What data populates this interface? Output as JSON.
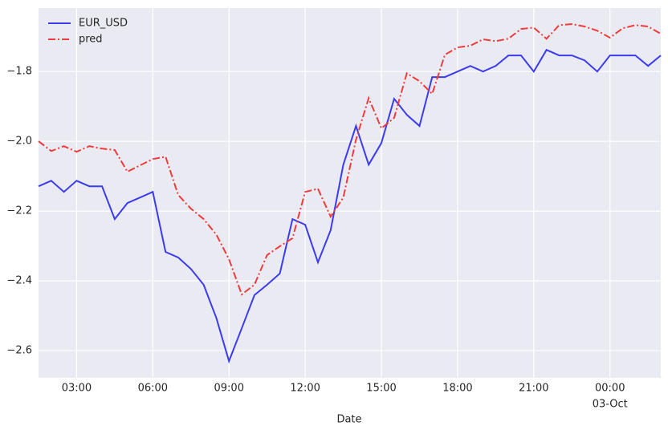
{
  "chart_data": {
    "type": "line",
    "x_label": "Date",
    "x": [
      1.5,
      2.0,
      2.5,
      3.0,
      3.5,
      4.0,
      4.5,
      5.0,
      5.5,
      6.0,
      6.5,
      7.0,
      7.5,
      8.0,
      8.5,
      9.0,
      9.5,
      10.0,
      10.5,
      11.0,
      11.5,
      12.0,
      12.5,
      13.0,
      13.5,
      14.0,
      14.5,
      15.0,
      15.5,
      16.0,
      16.5,
      17.0,
      17.5,
      18.0,
      18.5,
      19.0,
      19.5,
      20.0,
      20.5,
      21.0,
      21.5,
      22.0,
      22.5,
      23.0,
      23.5,
      24.0,
      24.5,
      25.0,
      25.5,
      26.0
    ],
    "series": [
      {
        "name": "EUR_USD",
        "color": "#3b3bf0",
        "dash": "solid",
        "values": [
          -2.129,
          -2.113,
          -2.145,
          -2.113,
          -2.129,
          -2.129,
          -2.223,
          -2.177,
          -2.161,
          -2.145,
          -2.317,
          -2.333,
          -2.366,
          -2.411,
          -2.506,
          -2.63,
          -2.536,
          -2.441,
          -2.411,
          -2.379,
          -2.223,
          -2.239,
          -2.347,
          -2.255,
          -2.067,
          -1.956,
          -2.067,
          -2.005,
          -1.878,
          -1.924,
          -1.956,
          -1.816,
          -1.816,
          -1.8,
          -1.784,
          -1.8,
          -1.784,
          -1.754,
          -1.754,
          -1.8,
          -1.738,
          -1.754,
          -1.754,
          -1.768,
          -1.8,
          -1.754,
          -1.754,
          -1.754,
          -1.784,
          -1.754
        ]
      },
      {
        "name": "pred",
        "color": "#ee3b3b",
        "dash": "dashdot",
        "values": [
          -2.0,
          -2.028,
          -2.014,
          -2.03,
          -2.014,
          -2.021,
          -2.025,
          -2.087,
          -2.069,
          -2.051,
          -2.044,
          -2.154,
          -2.193,
          -2.223,
          -2.267,
          -2.338,
          -2.439,
          -2.411,
          -2.326,
          -2.301,
          -2.278,
          -2.145,
          -2.136,
          -2.216,
          -2.161,
          -1.995,
          -1.876,
          -1.963,
          -1.933,
          -1.805,
          -1.828,
          -1.864,
          -1.752,
          -1.731,
          -1.726,
          -1.708,
          -1.713,
          -1.706,
          -1.678,
          -1.674,
          -1.706,
          -1.667,
          -1.664,
          -1.671,
          -1.683,
          -1.703,
          -1.676,
          -1.667,
          -1.671,
          -1.692
        ]
      }
    ],
    "xlim": [
      1.5,
      26.0
    ],
    "ylim": [
      -2.678,
      -1.618
    ],
    "xticks": [
      {
        "value": 3,
        "label": "03:00"
      },
      {
        "value": 6,
        "label": "06:00"
      },
      {
        "value": 9,
        "label": "09:00"
      },
      {
        "value": 12,
        "label": "12:00"
      },
      {
        "value": 15,
        "label": "15:00"
      },
      {
        "value": 18,
        "label": "18:00"
      },
      {
        "value": 21,
        "label": "21:00"
      },
      {
        "value": 24,
        "label": "00:00"
      }
    ],
    "xtick_date": {
      "value": 24,
      "label": "03-Oct"
    },
    "yticks": [
      {
        "value": -1.8,
        "label": "−1.8"
      },
      {
        "value": -2.0,
        "label": "−2.0"
      },
      {
        "value": -2.2,
        "label": "−2.2"
      },
      {
        "value": -2.4,
        "label": "−2.4"
      },
      {
        "value": -2.6,
        "label": "−2.6"
      }
    ],
    "grid": true,
    "legend": "upper-left",
    "background": "#eaeaf2"
  }
}
